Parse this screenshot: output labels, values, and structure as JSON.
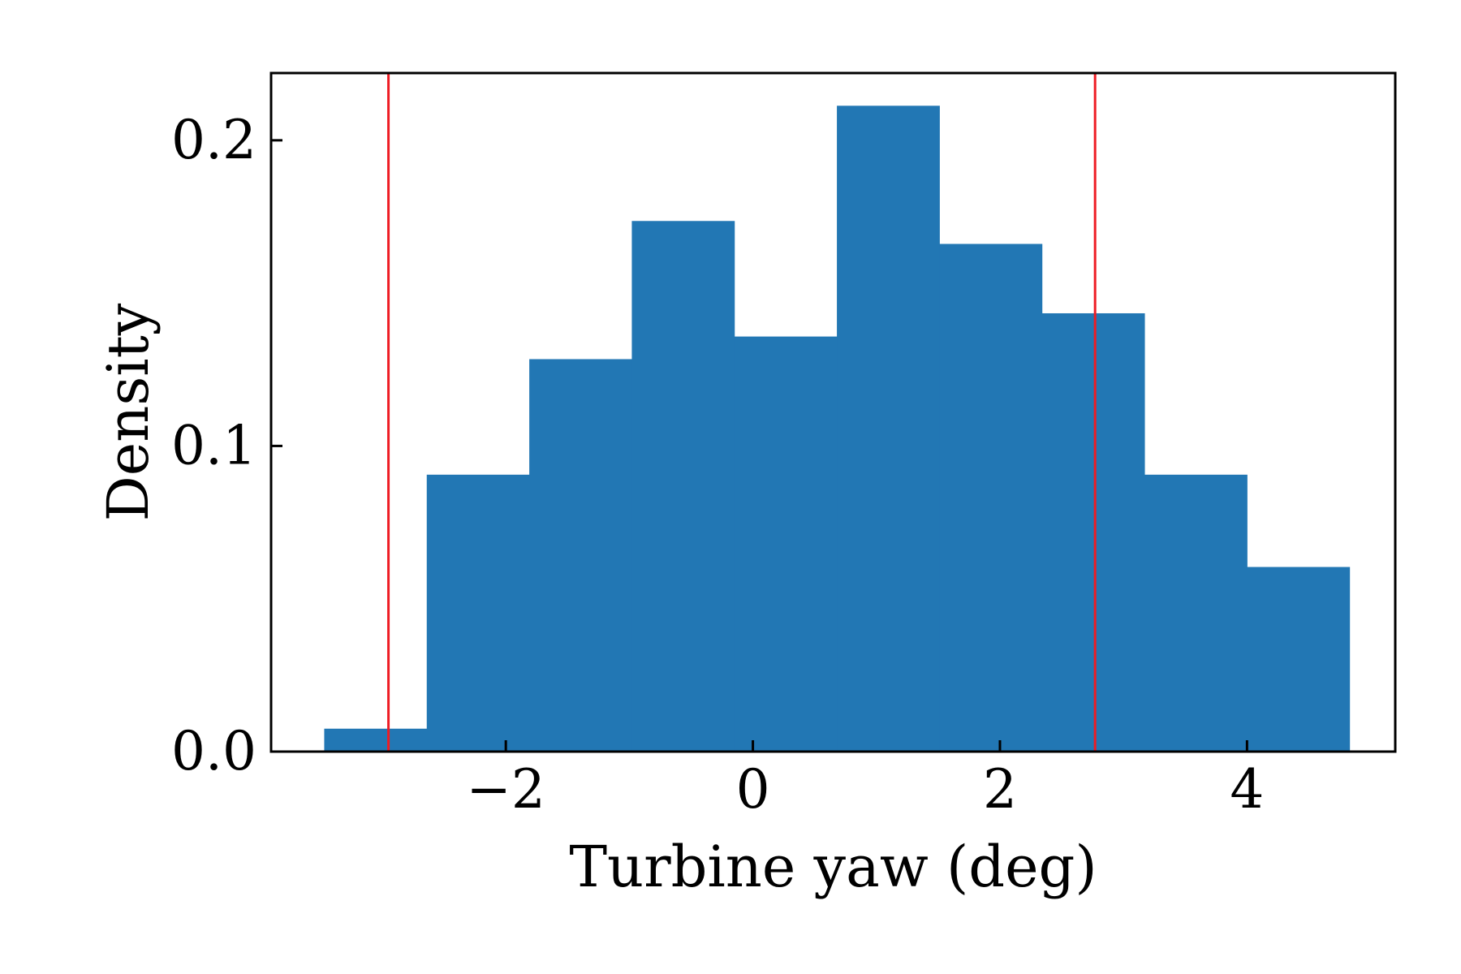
{
  "chart_data": {
    "type": "bar",
    "xlabel": "Turbine yaw (deg)",
    "ylabel": "Density",
    "xlim": [
      -3.9,
      5.2
    ],
    "ylim": [
      0,
      0.222
    ],
    "xticks": [
      -2,
      0,
      2,
      4
    ],
    "xtick_labels": [
      "−2",
      "0",
      "2",
      "4"
    ],
    "yticks": [
      0.0,
      0.1,
      0.2
    ],
    "ytick_labels": [
      "0.0",
      "0.1",
      "0.2"
    ],
    "bins": [
      {
        "x0": -3.47,
        "x1": -2.64,
        "value": 0.0075
      },
      {
        "x0": -2.64,
        "x1": -1.81,
        "value": 0.0906
      },
      {
        "x0": -1.81,
        "x1": -0.98,
        "value": 0.1284
      },
      {
        "x0": -0.98,
        "x1": -0.15,
        "value": 0.1736
      },
      {
        "x0": -0.15,
        "x1": 0.68,
        "value": 0.1358
      },
      {
        "x0": 0.68,
        "x1": 1.51,
        "value": 0.2113
      },
      {
        "x0": 1.51,
        "x1": 2.34,
        "value": 0.1661
      },
      {
        "x0": 2.34,
        "x1": 3.17,
        "value": 0.1434
      },
      {
        "x0": 3.17,
        "x1": 4.0,
        "value": 0.0906
      },
      {
        "x0": 4.0,
        "x1": 4.83,
        "value": 0.0604
      }
    ],
    "vlines": [
      -2.95,
      2.77
    ],
    "grid": false,
    "legend": "none",
    "colors": {
      "bar": "#2277b4",
      "vline": "#ee1c24",
      "axis": "#000000"
    }
  }
}
